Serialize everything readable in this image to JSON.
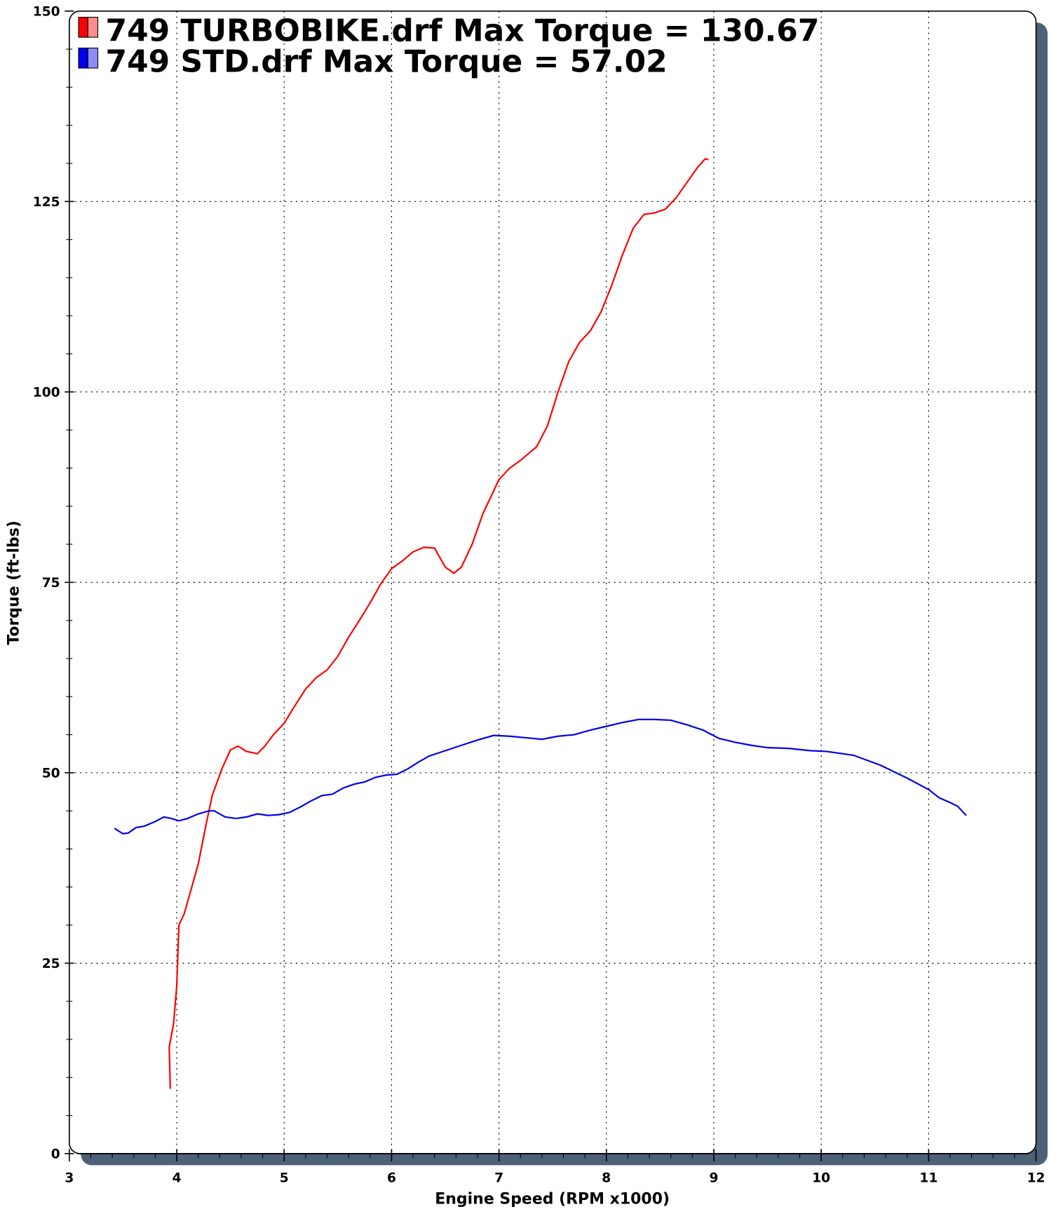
{
  "chart_data": {
    "type": "line",
    "xlabel": "Engine Speed (RPM x1000)",
    "ylabel": "Torque (ft-lbs)",
    "xlim": [
      3,
      12
    ],
    "xticks": [
      3,
      4,
      5,
      6,
      7,
      8,
      9,
      10,
      11,
      12
    ],
    "ylim": [
      0,
      150
    ],
    "yticks": [
      0,
      25,
      50,
      75,
      100,
      125,
      150
    ],
    "grid": true,
    "legend": "upper left",
    "series": [
      {
        "name": "749 TURBOBIKE.drf Max Torque = 130.67",
        "color": "#ff0000",
        "x": [
          3.94,
          3.93,
          3.97,
          4.0,
          4.02,
          4.07,
          4.14,
          4.2,
          4.27,
          4.33,
          4.42,
          4.5,
          4.57,
          4.65,
          4.75,
          4.82,
          4.9,
          5.0,
          5.1,
          5.2,
          5.3,
          5.4,
          5.5,
          5.6,
          5.7,
          5.8,
          5.9,
          6.0,
          6.1,
          6.2,
          6.3,
          6.4,
          6.5,
          6.58,
          6.65,
          6.75,
          6.85,
          7.0,
          7.1,
          7.2,
          7.35,
          7.45,
          7.55,
          7.65,
          7.75,
          7.85,
          7.95,
          8.05,
          8.15,
          8.25,
          8.35,
          8.45,
          8.55,
          8.65,
          8.75,
          8.85,
          8.92,
          8.95
        ],
        "values": [
          8.5,
          14,
          17,
          22,
          30,
          31.5,
          35,
          38,
          43,
          47,
          50.5,
          53,
          53.5,
          52.8,
          52.5,
          53.5,
          55,
          56.5,
          58.8,
          61,
          62.5,
          63.5,
          65.3,
          67.8,
          70,
          72.3,
          74.8,
          76.8,
          77.8,
          79,
          79.6,
          79.5,
          77,
          76.2,
          77,
          80,
          84,
          88.5,
          90,
          91,
          92.8,
          95.5,
          100,
          104,
          106.5,
          108,
          110.5,
          114,
          118,
          121.5,
          123.3,
          123.5,
          124,
          125.5,
          127.5,
          129.5,
          130.6,
          130.5
        ]
      },
      {
        "name": "749 STD.drf Max Torque = 57.02",
        "color": "#0000ee",
        "x": [
          3.42,
          3.5,
          3.55,
          3.62,
          3.7,
          3.8,
          3.88,
          3.95,
          4.02,
          4.1,
          4.2,
          4.3,
          4.35,
          4.45,
          4.55,
          4.65,
          4.75,
          4.85,
          4.95,
          5.05,
          5.15,
          5.25,
          5.35,
          5.45,
          5.55,
          5.65,
          5.75,
          5.85,
          5.95,
          6.05,
          6.15,
          6.25,
          6.35,
          6.5,
          6.65,
          6.8,
          6.95,
          7.1,
          7.25,
          7.4,
          7.55,
          7.7,
          7.85,
          8.0,
          8.15,
          8.3,
          8.45,
          8.6,
          8.75,
          8.9,
          9.05,
          9.2,
          9.35,
          9.5,
          9.7,
          9.9,
          10.05,
          10.3,
          10.55,
          10.8,
          11.0,
          11.1,
          11.2,
          11.27,
          11.35
        ],
        "values": [
          42.7,
          42,
          42.1,
          42.8,
          43,
          43.6,
          44.2,
          44,
          43.7,
          44,
          44.6,
          45,
          45,
          44.2,
          44,
          44.2,
          44.6,
          44.4,
          44.5,
          44.8,
          45.5,
          46.3,
          47,
          47.2,
          48,
          48.5,
          48.8,
          49.4,
          49.7,
          49.8,
          50.5,
          51.4,
          52.2,
          52.9,
          53.6,
          54.3,
          54.9,
          54.8,
          54.6,
          54.4,
          54.8,
          55,
          55.6,
          56.1,
          56.6,
          57,
          57,
          56.9,
          56.3,
          55.6,
          54.5,
          54,
          53.6,
          53.3,
          53.2,
          52.9,
          52.8,
          52.3,
          51,
          49.3,
          47.8,
          46.7,
          46.1,
          45.6,
          44.4
        ]
      }
    ]
  }
}
